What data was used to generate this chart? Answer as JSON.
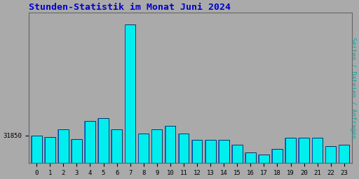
{
  "title": "Stunden-Statistik im Monat Juni 2024",
  "title_color": "#0000cc",
  "ylabel": "Seiten / Dateien / Anfragen",
  "ylabel_color": "#00aaaa",
  "xlabel_color": "#000000",
  "background_color": "#aaaaaa",
  "plot_bg_color": "#aaaaaa",
  "bar_face_color": "#00eeee",
  "bar_edge_color": "#003366",
  "bar_left_stripe_color": "#0055bb",
  "categories": [
    0,
    1,
    2,
    3,
    4,
    5,
    6,
    7,
    8,
    9,
    10,
    11,
    12,
    13,
    14,
    15,
    16,
    17,
    18,
    19,
    20,
    21,
    22,
    23
  ],
  "values": [
    31850,
    31848,
    31858,
    31845,
    31868,
    31872,
    31858,
    31990,
    31852,
    31858,
    31862,
    31852,
    31844,
    31844,
    31844,
    31838,
    31828,
    31826,
    31833,
    31847,
    31847,
    31847,
    31836,
    31838
  ],
  "ylim_min": 31815,
  "ylim_max": 32005,
  "ytick_value": 31850,
  "figsize": [
    5.12,
    2.56
  ],
  "dpi": 100
}
